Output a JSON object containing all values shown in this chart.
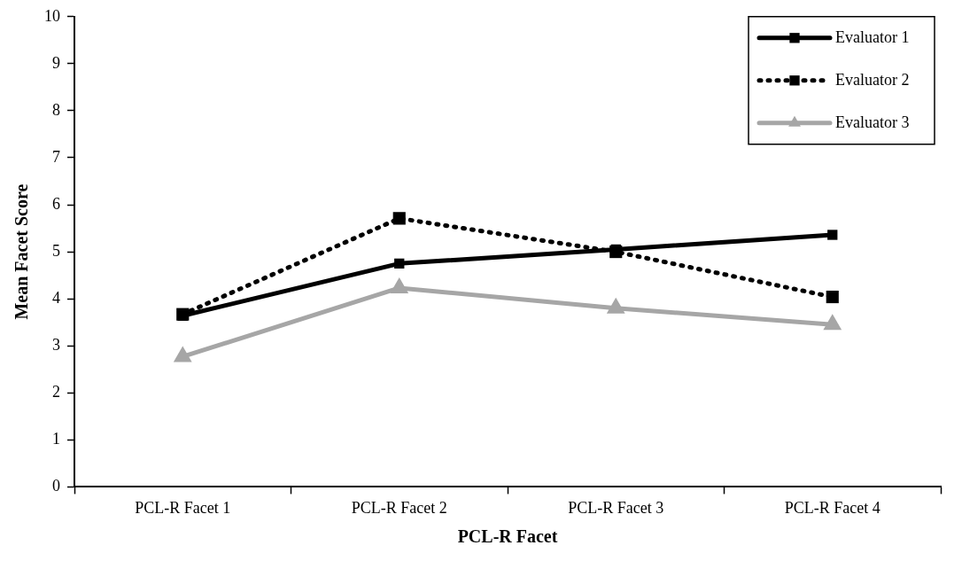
{
  "chart_data": {
    "type": "line",
    "xlabel": "PCL-R Facet",
    "ylabel": "Mean Facet Score",
    "categories": [
      "PCL-R Facet 1",
      "PCL-R Facet 2",
      "PCL-R Facet 3",
      "PCL-R Facet 4"
    ],
    "series": [
      {
        "name": "Evaluator 1",
        "color": "#000000",
        "marker": "square",
        "line_style": "solid",
        "values": [
          3.64,
          4.75,
          5.05,
          5.36
        ]
      },
      {
        "name": "Evaluator 2",
        "color": "#000000",
        "marker": "square",
        "line_style": "dotted",
        "values": [
          3.67,
          5.71,
          5.0,
          4.04
        ]
      },
      {
        "name": "Evaluator 3",
        "color": "#a6a6a6",
        "marker": "triangle",
        "line_style": "solid",
        "values": [
          2.77,
          4.23,
          3.8,
          3.45
        ]
      }
    ],
    "ylim": [
      0,
      10
    ],
    "yticks": [
      0,
      1,
      2,
      3,
      4,
      5,
      6,
      7,
      8,
      9,
      10
    ],
    "grid": false,
    "legend": "top right"
  }
}
